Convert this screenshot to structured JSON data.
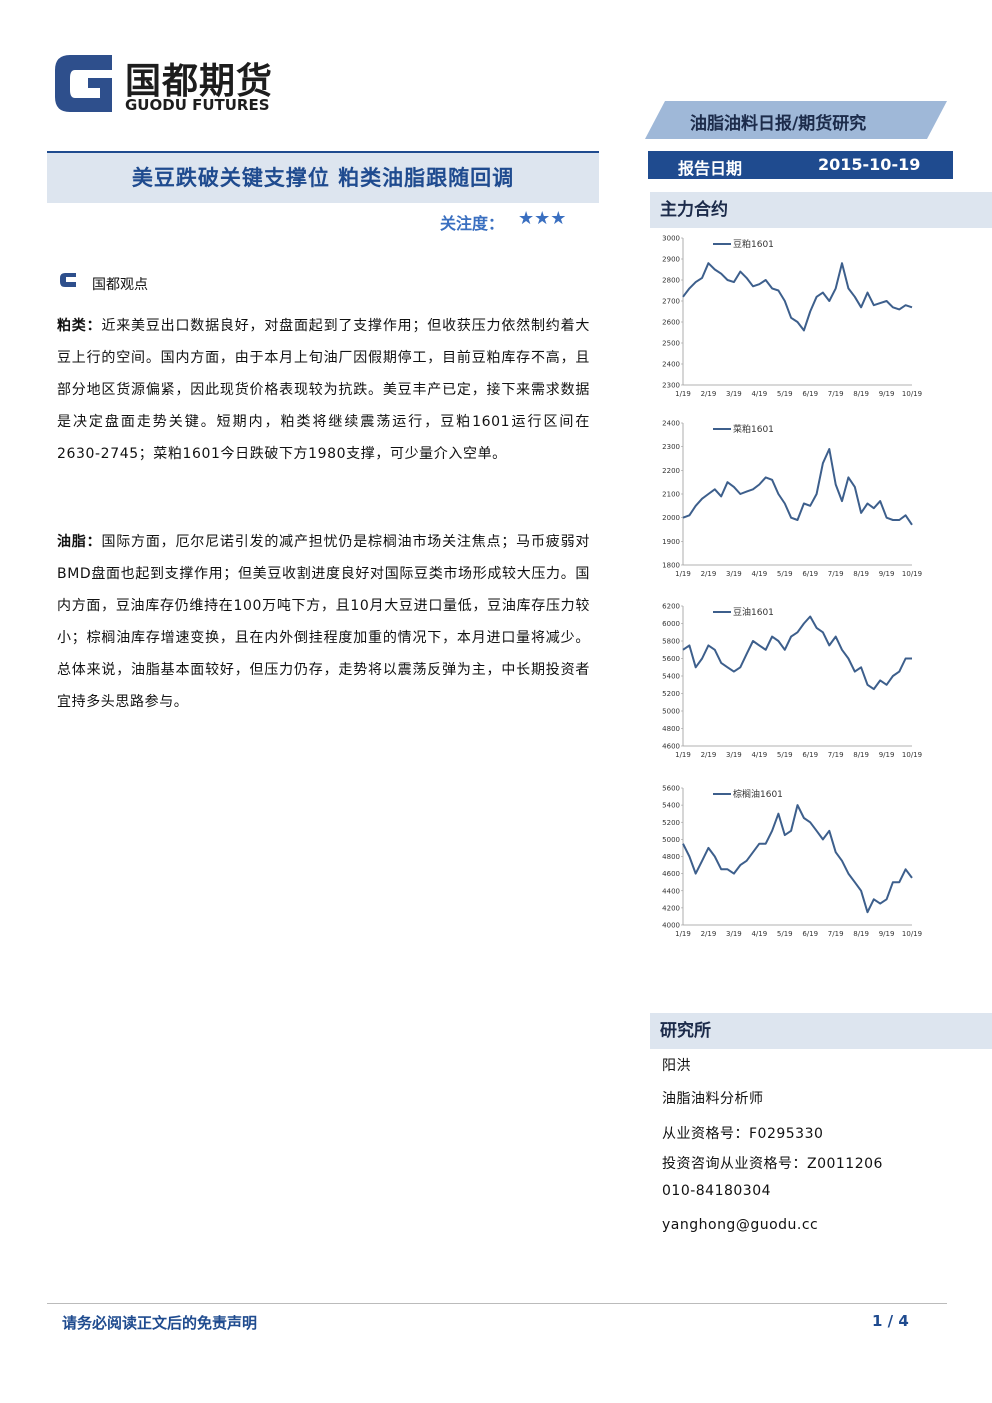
{
  "header": {
    "logo_cn": "国都期货",
    "logo_en": "GUODU FUTURES",
    "banner": "油脂油料日报/期货研究",
    "date_label": "报告日期",
    "date": "2015-10-19"
  },
  "title": "美豆跌破关键支撑位 粕类油脂跟随回调",
  "attention": {
    "label": "关注度：",
    "stars": "★★★"
  },
  "section": "国都观点",
  "paragraphs": [
    {
      "lead": "粕类：",
      "text": "近来美豆出口数据良好，对盘面起到了支撑作用；但收获压力依然制约着大豆上行的空间。国内方面，由于本月上旬油厂因假期停工，目前豆粕库存不高，且部分地区货源偏紧，因此现货价格表现较为抗跌。美豆丰产已定，接下来需求数据是决定盘面走势关键。短期内，粕类将继续震荡运行，豆粕1601运行区间在2630-2745；菜粕1601今日跌破下方1980支撑，可少量介入空单。"
    },
    {
      "lead": "油脂：",
      "text": "国际方面，厄尔尼诺引发的减产担忧仍是棕榈油市场关注焦点；马币疲弱对BMD盘面也起到支撑作用；但美豆收割进度良好对国际豆类市场形成较大压力。国内方面，豆油库存仍维持在100万吨下方，且10月大豆进口量低，豆油库存压力较小；棕榈油库存增速变换，且在内外倒挂程度加重的情况下，本月进口量将减少。总体来说，油脂基本面较好，但压力仍存，走势将以震荡反弹为主，中长期投资者宜持多头思路参与。"
    }
  ],
  "sidebar": {
    "contracts_title": "主力合约",
    "institute_title": "研究所",
    "author": [
      "阳洪",
      "油脂油料分析师",
      "从业资格号：F0295330",
      "投资咨询从业资格号：Z0011206",
      "010-84180304",
      "yanghong@guodu.cc"
    ]
  },
  "footer": {
    "disclaimer": "请务必阅读正文后的免责声明",
    "page": "1 / 4"
  },
  "chart_data": [
    {
      "type": "line",
      "categories": [
        "1/19",
        null,
        null,
        null,
        "2/19",
        null,
        null,
        null,
        "3/19",
        null,
        null,
        null,
        "4/19",
        null,
        null,
        null,
        "5/19",
        null,
        null,
        null,
        "6/19",
        null,
        null,
        null,
        "7/19",
        null,
        null,
        null,
        "8/19",
        null,
        null,
        null,
        "9/19",
        null,
        null,
        null,
        "10/19"
      ],
      "series": [
        {
          "name": "豆粕1601",
          "color": "#3d5f8c",
          "values": [
            2720,
            2760,
            2790,
            2810,
            2880,
            2850,
            2830,
            2800,
            2790,
            2840,
            2810,
            2770,
            2780,
            2800,
            2760,
            2750,
            2700,
            2620,
            2600,
            2560,
            2650,
            2720,
            2740,
            2700,
            2760,
            2880,
            2760,
            2720,
            2670,
            2740,
            2680,
            2690,
            2700,
            2670,
            2660,
            2680,
            2670
          ]
        }
      ],
      "ylim": [
        2300,
        3000
      ],
      "yticks": [
        2300,
        2400,
        2500,
        2600,
        2700,
        2800,
        2900,
        3000
      ],
      "grid": false
    },
    {
      "type": "line",
      "categories": [
        "1/19",
        null,
        null,
        null,
        "2/19",
        null,
        null,
        null,
        "3/19",
        null,
        null,
        null,
        "4/19",
        null,
        null,
        null,
        "5/19",
        null,
        null,
        null,
        "6/19",
        null,
        null,
        null,
        "7/19",
        null,
        null,
        null,
        "8/19",
        null,
        null,
        null,
        "9/19",
        null,
        null,
        null,
        "10/19"
      ],
      "series": [
        {
          "name": "菜粕1601",
          "color": "#3d5f8c",
          "values": [
            2000,
            2010,
            2050,
            2080,
            2100,
            2120,
            2090,
            2150,
            2130,
            2100,
            2110,
            2120,
            2140,
            2170,
            2160,
            2100,
            2060,
            2000,
            1990,
            2060,
            2050,
            2100,
            2230,
            2290,
            2140,
            2070,
            2170,
            2130,
            2020,
            2060,
            2040,
            2070,
            2000,
            1990,
            1990,
            2010,
            1970
          ]
        }
      ],
      "ylim": [
        1800,
        2400
      ],
      "yticks": [
        1800,
        1900,
        2000,
        2100,
        2200,
        2300,
        2400
      ],
      "grid": false
    },
    {
      "type": "line",
      "categories": [
        "1/19",
        null,
        null,
        null,
        "2/19",
        null,
        null,
        null,
        "3/19",
        null,
        null,
        null,
        "4/19",
        null,
        null,
        null,
        "5/19",
        null,
        null,
        null,
        "6/19",
        null,
        null,
        null,
        "7/19",
        null,
        null,
        null,
        "8/19",
        null,
        null,
        null,
        "9/19",
        null,
        null,
        null,
        "10/19"
      ],
      "series": [
        {
          "name": "豆油1601",
          "color": "#3d5f8c",
          "values": [
            5700,
            5750,
            5500,
            5600,
            5750,
            5700,
            5550,
            5500,
            5450,
            5500,
            5650,
            5800,
            5750,
            5700,
            5850,
            5800,
            5700,
            5850,
            5900,
            6000,
            6080,
            5950,
            5900,
            5750,
            5850,
            5700,
            5600,
            5450,
            5500,
            5300,
            5250,
            5350,
            5300,
            5400,
            5450,
            5600,
            5600
          ]
        }
      ],
      "ylim": [
        4600,
        6200
      ],
      "yticks": [
        4600,
        4800,
        5000,
        5200,
        5400,
        5600,
        5800,
        6000,
        6200
      ],
      "grid": false
    },
    {
      "type": "line",
      "categories": [
        "1/19",
        null,
        null,
        null,
        "2/19",
        null,
        null,
        null,
        "3/19",
        null,
        null,
        null,
        "4/19",
        null,
        null,
        null,
        "5/19",
        null,
        null,
        null,
        "6/19",
        null,
        null,
        null,
        "7/19",
        null,
        null,
        null,
        "8/19",
        null,
        null,
        null,
        "9/19",
        null,
        null,
        null,
        "10/19"
      ],
      "series": [
        {
          "name": "棕榈油1601",
          "color": "#3d5f8c",
          "values": [
            4950,
            4800,
            4600,
            4750,
            4900,
            4800,
            4650,
            4650,
            4600,
            4700,
            4750,
            4850,
            4950,
            4950,
            5100,
            5300,
            5050,
            5100,
            5400,
            5250,
            5200,
            5100,
            5000,
            5100,
            4850,
            4750,
            4600,
            4500,
            4400,
            4150,
            4300,
            4250,
            4300,
            4500,
            4500,
            4650,
            4550
          ]
        }
      ],
      "ylim": [
        4000,
        5600
      ],
      "yticks": [
        4000,
        4200,
        4400,
        4600,
        4800,
        5000,
        5200,
        5400,
        5600
      ],
      "grid": false
    }
  ]
}
